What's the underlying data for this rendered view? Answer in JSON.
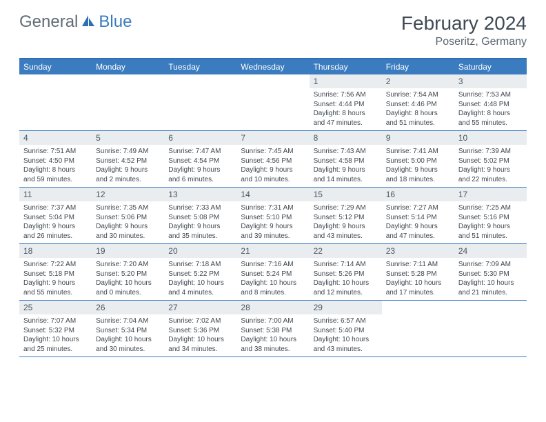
{
  "logo": {
    "text1": "General",
    "text2": "Blue",
    "text1_color": "#5f6b76",
    "text2_color": "#3b7bbf",
    "icon_color": "#2d6fb3"
  },
  "title": "February 2024",
  "location": "Poseritz, Germany",
  "colors": {
    "header_bg": "#3b7bbf",
    "header_border": "#2d6fb3",
    "row_border": "#3b7bbf",
    "daynum_bg": "#e9edf0",
    "text_dark": "#3d4750",
    "title_color": "#404a54"
  },
  "weekdays": [
    "Sunday",
    "Monday",
    "Tuesday",
    "Wednesday",
    "Thursday",
    "Friday",
    "Saturday"
  ],
  "weeks": [
    [
      null,
      null,
      null,
      null,
      {
        "n": "1",
        "sr": "Sunrise: 7:56 AM",
        "ss": "Sunset: 4:44 PM",
        "d1": "Daylight: 8 hours",
        "d2": "and 47 minutes."
      },
      {
        "n": "2",
        "sr": "Sunrise: 7:54 AM",
        "ss": "Sunset: 4:46 PM",
        "d1": "Daylight: 8 hours",
        "d2": "and 51 minutes."
      },
      {
        "n": "3",
        "sr": "Sunrise: 7:53 AM",
        "ss": "Sunset: 4:48 PM",
        "d1": "Daylight: 8 hours",
        "d2": "and 55 minutes."
      }
    ],
    [
      {
        "n": "4",
        "sr": "Sunrise: 7:51 AM",
        "ss": "Sunset: 4:50 PM",
        "d1": "Daylight: 8 hours",
        "d2": "and 59 minutes."
      },
      {
        "n": "5",
        "sr": "Sunrise: 7:49 AM",
        "ss": "Sunset: 4:52 PM",
        "d1": "Daylight: 9 hours",
        "d2": "and 2 minutes."
      },
      {
        "n": "6",
        "sr": "Sunrise: 7:47 AM",
        "ss": "Sunset: 4:54 PM",
        "d1": "Daylight: 9 hours",
        "d2": "and 6 minutes."
      },
      {
        "n": "7",
        "sr": "Sunrise: 7:45 AM",
        "ss": "Sunset: 4:56 PM",
        "d1": "Daylight: 9 hours",
        "d2": "and 10 minutes."
      },
      {
        "n": "8",
        "sr": "Sunrise: 7:43 AM",
        "ss": "Sunset: 4:58 PM",
        "d1": "Daylight: 9 hours",
        "d2": "and 14 minutes."
      },
      {
        "n": "9",
        "sr": "Sunrise: 7:41 AM",
        "ss": "Sunset: 5:00 PM",
        "d1": "Daylight: 9 hours",
        "d2": "and 18 minutes."
      },
      {
        "n": "10",
        "sr": "Sunrise: 7:39 AM",
        "ss": "Sunset: 5:02 PM",
        "d1": "Daylight: 9 hours",
        "d2": "and 22 minutes."
      }
    ],
    [
      {
        "n": "11",
        "sr": "Sunrise: 7:37 AM",
        "ss": "Sunset: 5:04 PM",
        "d1": "Daylight: 9 hours",
        "d2": "and 26 minutes."
      },
      {
        "n": "12",
        "sr": "Sunrise: 7:35 AM",
        "ss": "Sunset: 5:06 PM",
        "d1": "Daylight: 9 hours",
        "d2": "and 30 minutes."
      },
      {
        "n": "13",
        "sr": "Sunrise: 7:33 AM",
        "ss": "Sunset: 5:08 PM",
        "d1": "Daylight: 9 hours",
        "d2": "and 35 minutes."
      },
      {
        "n": "14",
        "sr": "Sunrise: 7:31 AM",
        "ss": "Sunset: 5:10 PM",
        "d1": "Daylight: 9 hours",
        "d2": "and 39 minutes."
      },
      {
        "n": "15",
        "sr": "Sunrise: 7:29 AM",
        "ss": "Sunset: 5:12 PM",
        "d1": "Daylight: 9 hours",
        "d2": "and 43 minutes."
      },
      {
        "n": "16",
        "sr": "Sunrise: 7:27 AM",
        "ss": "Sunset: 5:14 PM",
        "d1": "Daylight: 9 hours",
        "d2": "and 47 minutes."
      },
      {
        "n": "17",
        "sr": "Sunrise: 7:25 AM",
        "ss": "Sunset: 5:16 PM",
        "d1": "Daylight: 9 hours",
        "d2": "and 51 minutes."
      }
    ],
    [
      {
        "n": "18",
        "sr": "Sunrise: 7:22 AM",
        "ss": "Sunset: 5:18 PM",
        "d1": "Daylight: 9 hours",
        "d2": "and 55 minutes."
      },
      {
        "n": "19",
        "sr": "Sunrise: 7:20 AM",
        "ss": "Sunset: 5:20 PM",
        "d1": "Daylight: 10 hours",
        "d2": "and 0 minutes."
      },
      {
        "n": "20",
        "sr": "Sunrise: 7:18 AM",
        "ss": "Sunset: 5:22 PM",
        "d1": "Daylight: 10 hours",
        "d2": "and 4 minutes."
      },
      {
        "n": "21",
        "sr": "Sunrise: 7:16 AM",
        "ss": "Sunset: 5:24 PM",
        "d1": "Daylight: 10 hours",
        "d2": "and 8 minutes."
      },
      {
        "n": "22",
        "sr": "Sunrise: 7:14 AM",
        "ss": "Sunset: 5:26 PM",
        "d1": "Daylight: 10 hours",
        "d2": "and 12 minutes."
      },
      {
        "n": "23",
        "sr": "Sunrise: 7:11 AM",
        "ss": "Sunset: 5:28 PM",
        "d1": "Daylight: 10 hours",
        "d2": "and 17 minutes."
      },
      {
        "n": "24",
        "sr": "Sunrise: 7:09 AM",
        "ss": "Sunset: 5:30 PM",
        "d1": "Daylight: 10 hours",
        "d2": "and 21 minutes."
      }
    ],
    [
      {
        "n": "25",
        "sr": "Sunrise: 7:07 AM",
        "ss": "Sunset: 5:32 PM",
        "d1": "Daylight: 10 hours",
        "d2": "and 25 minutes."
      },
      {
        "n": "26",
        "sr": "Sunrise: 7:04 AM",
        "ss": "Sunset: 5:34 PM",
        "d1": "Daylight: 10 hours",
        "d2": "and 30 minutes."
      },
      {
        "n": "27",
        "sr": "Sunrise: 7:02 AM",
        "ss": "Sunset: 5:36 PM",
        "d1": "Daylight: 10 hours",
        "d2": "and 34 minutes."
      },
      {
        "n": "28",
        "sr": "Sunrise: 7:00 AM",
        "ss": "Sunset: 5:38 PM",
        "d1": "Daylight: 10 hours",
        "d2": "and 38 minutes."
      },
      {
        "n": "29",
        "sr": "Sunrise: 6:57 AM",
        "ss": "Sunset: 5:40 PM",
        "d1": "Daylight: 10 hours",
        "d2": "and 43 minutes."
      },
      null,
      null
    ]
  ]
}
